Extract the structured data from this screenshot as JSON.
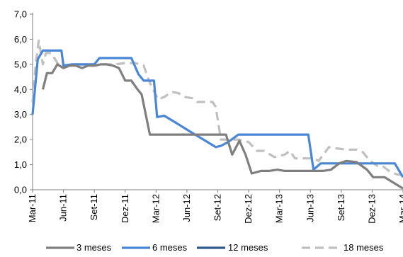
{
  "chart_data": {
    "type": "line",
    "title": "",
    "xlabel": "",
    "ylabel": "",
    "ylim": [
      0,
      7
    ],
    "y_ticks": [
      "0,0",
      "1,0",
      "2,0",
      "3,0",
      "4,0",
      "5,0",
      "6,0",
      "7,0"
    ],
    "x_tick_labels": [
      "Mar-11",
      "Jun-11",
      "Set-11",
      "Dez-11",
      "Mar-12",
      "Jun-12",
      "Set-12",
      "Dez-12",
      "Mar-13",
      "Jun-13",
      "Set-13",
      "Dez-13",
      "Mar-14"
    ],
    "x_tick_months": [
      0,
      3,
      6,
      9,
      12,
      15,
      18,
      21,
      24,
      27,
      30,
      33,
      36
    ],
    "x_range_months": [
      0,
      36
    ],
    "grid": false,
    "legend_position": "bottom",
    "series": [
      {
        "name": "3 meses",
        "color": "#7f7f7f",
        "dashed": false,
        "points": [
          [
            1.0,
            4.0
          ],
          [
            1.4,
            4.65
          ],
          [
            1.9,
            4.65
          ],
          [
            2.4,
            5.0
          ],
          [
            3.0,
            4.85
          ],
          [
            3.6,
            4.95
          ],
          [
            4.2,
            4.95
          ],
          [
            4.8,
            4.85
          ],
          [
            5.4,
            4.95
          ],
          [
            6.0,
            4.95
          ],
          [
            6.6,
            5.0
          ],
          [
            7.2,
            5.0
          ],
          [
            7.8,
            4.95
          ],
          [
            8.4,
            4.85
          ],
          [
            9.0,
            4.35
          ],
          [
            9.6,
            4.35
          ],
          [
            10.2,
            4.0
          ],
          [
            10.6,
            3.8
          ],
          [
            11.4,
            2.2
          ],
          [
            11.8,
            2.2
          ],
          [
            13.0,
            2.2
          ],
          [
            14.5,
            2.2
          ],
          [
            16.0,
            2.2
          ],
          [
            17.5,
            2.2
          ],
          [
            18.8,
            2.2
          ],
          [
            19.4,
            1.4
          ],
          [
            20.1,
            1.95
          ],
          [
            20.7,
            1.4
          ],
          [
            21.3,
            0.65
          ],
          [
            22.2,
            0.75
          ],
          [
            23.0,
            0.75
          ],
          [
            23.8,
            0.8
          ],
          [
            24.5,
            0.75
          ],
          [
            25.5,
            0.75
          ],
          [
            27.0,
            0.75
          ],
          [
            28.2,
            0.75
          ],
          [
            29.0,
            0.8
          ],
          [
            29.8,
            1.05
          ],
          [
            30.5,
            1.15
          ],
          [
            31.5,
            1.1
          ],
          [
            32.5,
            0.8
          ],
          [
            33.1,
            0.5
          ],
          [
            34.2,
            0.5
          ],
          [
            35.0,
            0.3
          ],
          [
            36.0,
            0.05
          ]
        ]
      },
      {
        "name": "6 meses",
        "color": "#4a86d8",
        "dashed": false,
        "points": [
          [
            0.0,
            3.0
          ],
          [
            0.5,
            5.2
          ],
          [
            1.0,
            5.55
          ],
          [
            2.0,
            5.55
          ],
          [
            2.8,
            5.55
          ],
          [
            3.0,
            4.95
          ],
          [
            3.8,
            5.0
          ],
          [
            4.5,
            5.0
          ],
          [
            5.2,
            5.0
          ],
          [
            6.0,
            5.0
          ],
          [
            6.5,
            5.25
          ],
          [
            7.5,
            5.25
          ],
          [
            8.5,
            5.25
          ],
          [
            9.0,
            5.25
          ],
          [
            9.6,
            5.25
          ],
          [
            10.3,
            4.6
          ],
          [
            10.8,
            4.35
          ],
          [
            11.8,
            4.35
          ],
          [
            12.1,
            2.9
          ],
          [
            12.8,
            2.95
          ],
          [
            13.8,
            2.7
          ],
          [
            14.8,
            2.45
          ],
          [
            15.8,
            2.2
          ],
          [
            16.8,
            1.95
          ],
          [
            17.8,
            1.7
          ],
          [
            18.3,
            1.75
          ],
          [
            19.0,
            1.9
          ],
          [
            20.0,
            2.2
          ],
          [
            21.0,
            2.2
          ],
          [
            22.0,
            2.2
          ],
          [
            23.5,
            2.2
          ],
          [
            25.0,
            2.2
          ],
          [
            26.0,
            2.2
          ],
          [
            26.8,
            2.2
          ],
          [
            27.3,
            0.8
          ],
          [
            28.0,
            1.05
          ],
          [
            29.0,
            1.05
          ],
          [
            30.5,
            1.05
          ],
          [
            32.0,
            1.05
          ],
          [
            33.5,
            1.05
          ],
          [
            35.0,
            1.05
          ],
          [
            35.2,
            1.05
          ],
          [
            36.0,
            0.5
          ]
        ]
      },
      {
        "name": "12 meses",
        "color": "#2e5a8c",
        "dashed": false,
        "points": []
      },
      {
        "name": "18 meses",
        "color": "#c0c0c0",
        "dashed": true,
        "points": [
          [
            0.0,
            3.5
          ],
          [
            0.3,
            5.0
          ],
          [
            0.6,
            5.95
          ],
          [
            1.0,
            5.0
          ],
          [
            1.3,
            5.45
          ],
          [
            1.8,
            5.45
          ],
          [
            2.5,
            5.0
          ],
          [
            3.2,
            4.95
          ],
          [
            4.0,
            4.95
          ],
          [
            4.8,
            5.0
          ],
          [
            5.5,
            4.95
          ],
          [
            6.2,
            4.95
          ],
          [
            7.0,
            5.0
          ],
          [
            8.0,
            5.0
          ],
          [
            9.0,
            5.05
          ],
          [
            10.0,
            5.05
          ],
          [
            10.8,
            4.95
          ],
          [
            11.3,
            4.35
          ],
          [
            12.2,
            3.6
          ],
          [
            12.8,
            3.7
          ],
          [
            13.5,
            3.9
          ],
          [
            14.2,
            3.85
          ],
          [
            14.8,
            3.7
          ],
          [
            15.5,
            3.65
          ],
          [
            16.0,
            3.5
          ],
          [
            17.0,
            3.5
          ],
          [
            17.5,
            3.5
          ],
          [
            17.8,
            3.3
          ],
          [
            18.3,
            2.0
          ],
          [
            19.0,
            2.0
          ],
          [
            20.0,
            2.0
          ],
          [
            21.0,
            1.9
          ],
          [
            21.8,
            1.55
          ],
          [
            22.5,
            1.55
          ],
          [
            23.5,
            1.3
          ],
          [
            24.5,
            1.4
          ],
          [
            25.0,
            1.55
          ],
          [
            25.5,
            1.25
          ],
          [
            26.3,
            1.25
          ],
          [
            27.3,
            1.25
          ],
          [
            27.8,
            1.15
          ],
          [
            28.8,
            1.7
          ],
          [
            29.5,
            1.65
          ],
          [
            30.5,
            1.6
          ],
          [
            31.5,
            1.6
          ],
          [
            32.1,
            1.5
          ],
          [
            32.8,
            1.15
          ],
          [
            33.5,
            0.95
          ],
          [
            34.0,
            0.95
          ],
          [
            34.8,
            0.7
          ],
          [
            35.5,
            0.6
          ],
          [
            36.0,
            0.6
          ]
        ]
      }
    ]
  }
}
